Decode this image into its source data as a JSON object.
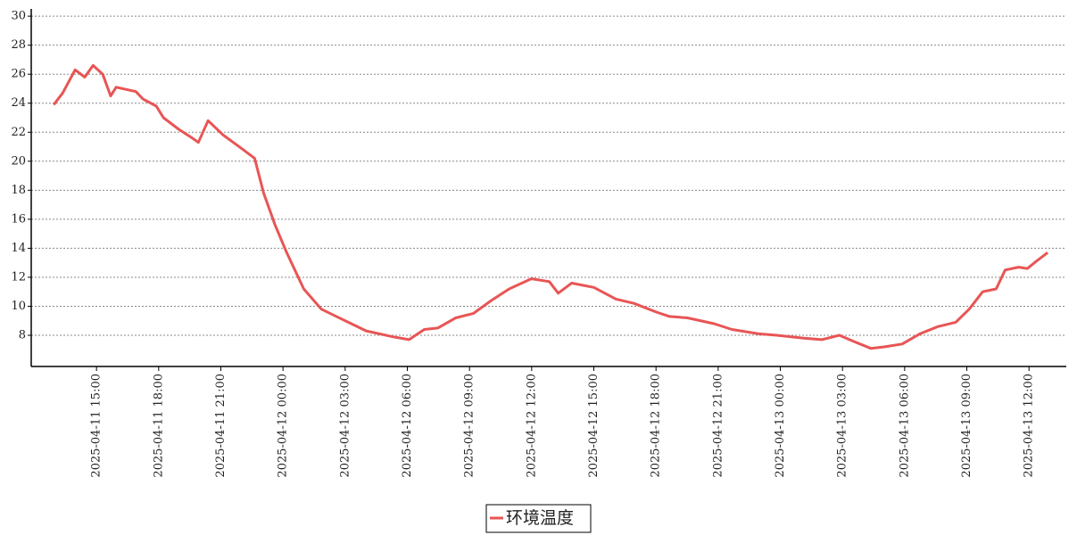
{
  "chart_data": {
    "type": "line",
    "x": [
      "2025-04-11 12:56",
      "2025-04-11 13:22",
      "2025-04-11 13:58",
      "2025-04-11 14:26",
      "2025-04-11 14:50",
      "2025-04-11 15:18",
      "2025-04-11 15:41",
      "2025-04-11 15:57",
      "2025-04-11 16:54",
      "2025-04-11 17:14",
      "2025-04-11 17:53",
      "2025-04-11 18:14",
      "2025-04-11 18:58",
      "2025-04-11 19:37",
      "2025-04-11 19:55",
      "2025-04-11 20:23",
      "2025-04-11 21:07",
      "2025-04-11 21:59",
      "2025-04-11 22:38",
      "2025-04-11 23:04",
      "2025-04-11 23:37",
      "2025-04-12 00:09",
      "2025-04-12 01:00",
      "2025-04-12 01:51",
      "2025-04-12 03:09",
      "2025-04-12 04:01",
      "2025-04-12 05:18",
      "2025-04-12 06:05",
      "2025-04-12 06:49",
      "2025-04-12 07:28",
      "2025-04-12 08:20",
      "2025-04-12 09:11",
      "2025-04-12 10:03",
      "2025-04-12 10:55",
      "2025-04-12 11:59",
      "2025-04-12 12:51",
      "2025-04-12 13:17",
      "2025-04-12 13:56",
      "2025-04-12 15:00",
      "2025-04-12 16:04",
      "2025-04-12 16:56",
      "2025-04-12 18:01",
      "2025-04-12 18:39",
      "2025-04-12 19:31",
      "2025-04-12 20:48",
      "2025-04-12 21:40",
      "2025-04-12 22:58",
      "2025-04-12 23:50",
      "2025-04-13 01:08",
      "2025-04-13 02:00",
      "2025-04-13 02:51",
      "2025-04-13 03:30",
      "2025-04-13 04:22",
      "2025-04-13 05:01",
      "2025-04-13 05:53",
      "2025-04-13 06:44",
      "2025-04-13 07:36",
      "2025-04-13 08:28",
      "2025-04-13 09:07",
      "2025-04-13 09:46",
      "2025-04-13 10:25",
      "2025-04-13 10:51",
      "2025-04-13 11:30",
      "2025-04-13 11:55",
      "2025-04-13 12:21",
      "2025-04-13 12:54"
    ],
    "series": [
      {
        "name": "环境温度",
        "color": "#e85555",
        "values": [
          23.9,
          24.7,
          26.3,
          25.8,
          26.6,
          26.0,
          24.5,
          25.1,
          24.8,
          24.3,
          23.8,
          23.0,
          22.2,
          21.6,
          21.3,
          22.8,
          21.8,
          20.9,
          20.2,
          17.8,
          15.6,
          13.8,
          11.2,
          9.8,
          8.9,
          8.3,
          7.9,
          7.7,
          8.4,
          8.5,
          9.2,
          9.5,
          10.4,
          11.2,
          11.9,
          11.7,
          10.9,
          11.6,
          11.3,
          10.5,
          10.2,
          9.6,
          9.3,
          9.2,
          8.8,
          8.4,
          8.1,
          8.0,
          7.8,
          7.7,
          8.0,
          7.6,
          7.1,
          7.2,
          7.4,
          8.1,
          8.6,
          8.9,
          9.8,
          11.0,
          11.2,
          12.5,
          12.7,
          12.6,
          13.1,
          13.7
        ]
      }
    ],
    "xlim": [
      "2025-04-11 11:51",
      "2025-04-13 13:48"
    ],
    "xticks": [
      "2025-04-11 15:00",
      "2025-04-11 18:00",
      "2025-04-11 21:00",
      "2025-04-12 00:00",
      "2025-04-12 03:00",
      "2025-04-12 06:00",
      "2025-04-12 09:00",
      "2025-04-12 12:00",
      "2025-04-12 15:00",
      "2025-04-12 18:00",
      "2025-04-12 21:00",
      "2025-04-13 00:00",
      "2025-04-13 03:00",
      "2025-04-13 06:00",
      "2025-04-13 09:00",
      "2025-04-13 12:00"
    ],
    "ylim": [
      5.85,
      30.5
    ],
    "yticks": [
      8,
      10,
      12,
      14,
      16,
      18,
      20,
      22,
      24,
      26,
      28,
      30
    ],
    "grid": true
  }
}
